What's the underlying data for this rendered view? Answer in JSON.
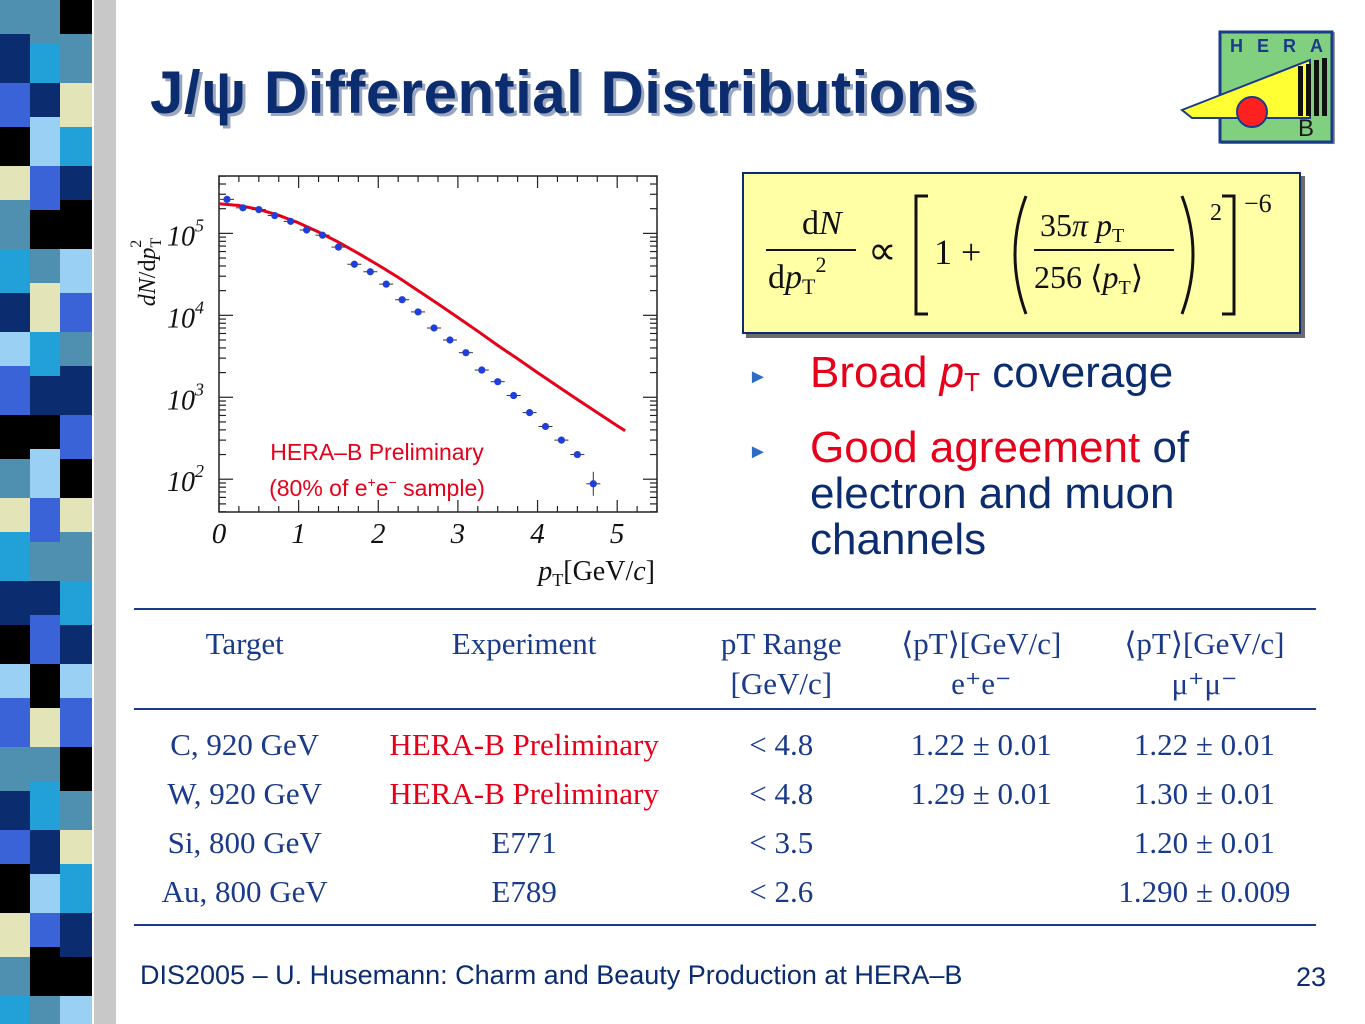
{
  "slide": {
    "title": "J/ψ Differential Distributions",
    "footer": "DIS2005 – U. Husemann: Charm and Beauty Production at HERA–B",
    "page_number": "23"
  },
  "logo": {
    "letters": [
      "H",
      "E",
      "R",
      "A"
    ],
    "sub_letter": "B",
    "colors": {
      "background": "#80d080",
      "wedge": "#ffff33",
      "ball": "#ff2020",
      "frame": "#1a3a8a"
    }
  },
  "formula": {
    "lhs_num": "dN",
    "lhs_den": "dpT²",
    "relation": "∝",
    "one": "1 +",
    "inner_num": "35π pT",
    "inner_den": "256 ⟨pT⟩",
    "inner_power": "2",
    "outer_power": "−6"
  },
  "bullets": [
    {
      "red": "Broad ",
      "red_italic": "p",
      "red_sub": "T",
      "rest": " coverage"
    },
    {
      "red": "Good agreement",
      "rest": " of electron and muon channels"
    }
  ],
  "chart_data": {
    "type": "scatter",
    "title": "",
    "ylabel": "dN/dpT2",
    "xlabel": "pT[GeV/c]",
    "x_ticks": [
      "0",
      "1",
      "2",
      "3",
      "4",
      "5"
    ],
    "y_ticks": [
      {
        "base": "10",
        "exp": "5"
      },
      {
        "base": "10",
        "exp": "4"
      },
      {
        "base": "10",
        "exp": "3"
      },
      {
        "base": "10",
        "exp": "2"
      }
    ],
    "xlim": [
      0,
      5.5
    ],
    "ylim_log10": [
      1.6,
      5.7
    ],
    "y_scale": "log",
    "annotation_line1": "HERA–B Preliminary",
    "annotation_line2_pre": "(80% of e",
    "annotation_line2_sup1": "+",
    "annotation_line2_mid": "e",
    "annotation_line2_sup2": "−",
    "annotation_line2_post": " sample)",
    "series": [
      {
        "kind": "points",
        "x": [
          0.1,
          0.3,
          0.5,
          0.7,
          0.9,
          1.1,
          1.3,
          1.5,
          1.7,
          1.9,
          2.1,
          2.3,
          2.5,
          2.7,
          2.9,
          3.1,
          3.3,
          3.5,
          3.7,
          3.9,
          4.1,
          4.3,
          4.5,
          4.7
        ],
        "y": [
          260000,
          205000,
          195000,
          165000,
          140000,
          110000,
          95000,
          68000,
          42000,
          34000,
          24000,
          15500,
          11000,
          7000,
          5000,
          3500,
          2150,
          1550,
          1050,
          650,
          440,
          300,
          200,
          88
        ]
      },
      {
        "kind": "fit",
        "color": "#e6001a",
        "x": [
          0,
          0.25,
          0.5,
          0.75,
          1.0,
          1.25,
          1.5,
          1.75,
          2.0,
          2.25,
          2.5,
          2.75,
          3.0,
          3.25,
          3.5,
          3.75,
          4.0,
          4.25,
          4.5,
          4.75,
          5.0,
          5.1
        ],
        "y": [
          230000,
          219000,
          196000,
          166000,
          134000,
          104000,
          78000,
          57000,
          41000,
          29000,
          20000,
          13800,
          9400,
          6400,
          4300,
          2950,
          2000,
          1370,
          940,
          650,
          450,
          390
        ]
      }
    ],
    "colors": {
      "points": "#1f3fd8",
      "fit": "#e6001a"
    }
  },
  "table": {
    "headers": [
      {
        "line1": "Target",
        "line2": ""
      },
      {
        "line1": "Experiment",
        "line2": ""
      },
      {
        "line1": "pT Range",
        "line2": "[GeV/c]"
      },
      {
        "line1": "⟨pT⟩[GeV/c]",
        "line2": "e⁺e⁻"
      },
      {
        "line1": "⟨pT⟩[GeV/c]",
        "line2": "μ⁺μ⁻"
      }
    ],
    "rows": [
      {
        "target": "C, 920 GeV",
        "experiment": "HERA-B Preliminary",
        "range": "< 4.8",
        "ee": "1.22 ± 0.01",
        "mumu": "1.22 ± 0.01",
        "highlight": true
      },
      {
        "target": "W, 920 GeV",
        "experiment": "HERA-B Preliminary",
        "range": "< 4.8",
        "ee": "1.29 ± 0.01",
        "mumu": "1.30 ± 0.01",
        "highlight": true
      },
      {
        "target": "Si, 800 GeV",
        "experiment": "E771",
        "range": "< 3.5",
        "ee": "",
        "mumu": "1.20 ± 0.01",
        "highlight": false
      },
      {
        "target": "Au, 800 GeV",
        "experiment": "E789",
        "range": "< 2.6",
        "ee": "",
        "mumu": "1.290 ± 0.009",
        "highlight": false
      }
    ]
  }
}
